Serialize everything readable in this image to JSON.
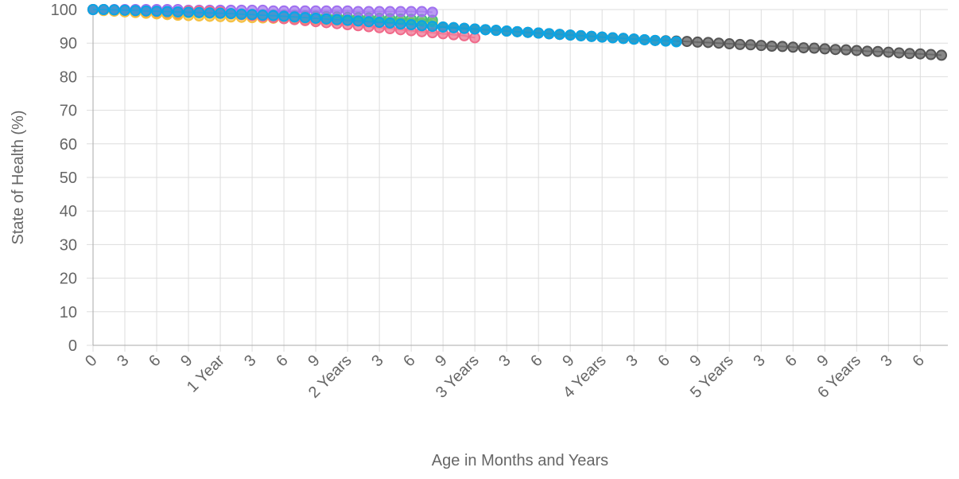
{
  "chart_data": {
    "type": "line",
    "x_label": "Age in Months and Years",
    "y_label": "State of Health (%)",
    "xlim": [
      0,
      80.6
    ],
    "ylim": [
      0,
      100
    ],
    "yticks": [
      0,
      10,
      20,
      30,
      40,
      50,
      60,
      70,
      80,
      90,
      100
    ],
    "xticks": [
      0,
      3,
      6,
      9,
      {
        "value": 12,
        "label": "1 Year"
      },
      {
        "value": 15,
        "label": "3"
      },
      {
        "value": 18,
        "label": "6"
      },
      {
        "value": 21,
        "label": "9"
      },
      {
        "value": 24,
        "label": "2 Years"
      },
      {
        "value": 27,
        "label": "3"
      },
      {
        "value": 30,
        "label": "6"
      },
      {
        "value": 33,
        "label": "9"
      },
      {
        "value": 36,
        "label": "3 Years"
      },
      {
        "value": 39,
        "label": "3"
      },
      {
        "value": 42,
        "label": "6"
      },
      {
        "value": 45,
        "label": "9"
      },
      {
        "value": 48,
        "label": "4 Years"
      },
      {
        "value": 51,
        "label": "3"
      },
      {
        "value": 54,
        "label": "6"
      },
      {
        "value": 57,
        "label": "9"
      },
      {
        "value": 60,
        "label": "5 Years"
      },
      {
        "value": 63,
        "label": "3"
      },
      {
        "value": 66,
        "label": "6"
      },
      {
        "value": 69,
        "label": "9"
      },
      {
        "value": 72,
        "label": "6 Years"
      },
      {
        "value": 75,
        "label": "3"
      },
      {
        "value": 78,
        "label": "6"
      }
    ],
    "grid": true,
    "series": [
      {
        "color": "#555555",
        "x": [
          0,
          1,
          2,
          3,
          4,
          5,
          6,
          7,
          8,
          9,
          10,
          11,
          12,
          13,
          14,
          15,
          16,
          17,
          18,
          19,
          20,
          21,
          22,
          23,
          24,
          25,
          26,
          27,
          28,
          29,
          30,
          31,
          32,
          33,
          34,
          35,
          36,
          37,
          38,
          39,
          40,
          41,
          42,
          43,
          44,
          45,
          46,
          47,
          48,
          49,
          50,
          51,
          52,
          53,
          54,
          55,
          56,
          57,
          58,
          59,
          60,
          61,
          62,
          63,
          64,
          65,
          66,
          67,
          68,
          69,
          70,
          71,
          72,
          73,
          74,
          75,
          76,
          77,
          78,
          79,
          80
        ],
        "values": [
          100,
          100,
          99.9,
          99.8,
          99.7,
          99.6,
          99.5,
          99.4,
          99.3,
          99.2,
          99.1,
          99,
          98.9,
          98.8,
          98.6,
          98.5,
          98.3,
          98.2,
          98,
          97.8,
          97.6,
          97.4,
          97.2,
          97,
          96.8,
          96.6,
          96.4,
          96.2,
          96,
          95.7,
          95.5,
          95.2,
          95,
          94.8,
          94.6,
          94.4,
          94.2,
          94,
          93.8,
          93.6,
          93.4,
          93.2,
          93,
          92.8,
          92.6,
          92.4,
          92.2,
          92,
          91.8,
          91.6,
          91.4,
          91.2,
          91,
          90.8,
          90.7,
          90.6,
          90.5,
          90.3,
          90.2,
          90,
          89.8,
          89.6,
          89.5,
          89.3,
          89.1,
          89,
          88.8,
          88.6,
          88.5,
          88.3,
          88.1,
          88,
          87.8,
          87.6,
          87.5,
          87.3,
          87.1,
          86.9,
          86.8,
          86.6,
          86.4
        ]
      },
      {
        "color": "#e8202a",
        "x": [
          0,
          1,
          2,
          3,
          4,
          5,
          6,
          7,
          8
        ],
        "values": [
          100,
          99.8,
          99.6,
          99.4,
          99.2,
          99,
          98.8,
          98.6,
          98.5
        ]
      },
      {
        "color": "#f5c042",
        "x": [
          0,
          1,
          2,
          3,
          4,
          5,
          6,
          7,
          8,
          9,
          10,
          11,
          12,
          13,
          14,
          15,
          16,
          17,
          18,
          19,
          20,
          21,
          22,
          23,
          24,
          25,
          26,
          27,
          28,
          29,
          30,
          31,
          32
        ],
        "values": [
          100,
          99.7,
          99.5,
          99.3,
          99.1,
          98.9,
          98.7,
          98.5,
          98.3,
          98.2,
          98.1,
          98,
          97.9,
          97.8,
          97.7,
          97.6,
          97.5,
          97.4,
          97.3,
          97.2,
          97.1,
          97,
          96.9,
          96.8,
          96.7,
          96.6,
          96.5,
          96.4,
          96.3,
          96.2,
          96.1,
          96,
          96
        ]
      },
      {
        "color": "#4bc07a",
        "x": [
          0,
          1,
          2,
          3,
          4,
          5,
          6,
          7,
          8,
          9,
          10,
          11,
          12,
          13,
          14,
          15,
          16,
          17,
          18,
          19,
          20,
          21,
          22,
          23,
          24,
          25,
          26,
          27,
          28,
          29,
          30,
          31,
          32
        ],
        "values": [
          100,
          100,
          99.9,
          99.8,
          99.7,
          99.6,
          99.5,
          99.4,
          99.3,
          99.2,
          99.1,
          99,
          98.9,
          98.8,
          98.7,
          98.6,
          98.5,
          98.4,
          98.3,
          98.2,
          98.1,
          98,
          97.9,
          97.8,
          97.7,
          97.6,
          97.5,
          97.4,
          97.3,
          97.2,
          97.1,
          97,
          96.8
        ]
      },
      {
        "color": "#a070f0",
        "x": [
          0,
          1,
          2,
          3,
          4,
          5,
          6,
          7,
          8,
          9,
          10,
          11,
          12,
          13,
          14,
          15,
          16,
          17,
          18,
          19,
          20,
          21,
          22,
          23,
          24,
          25,
          26,
          27,
          28,
          29,
          30,
          31,
          32
        ],
        "values": [
          100,
          100,
          100,
          100,
          100,
          100,
          100,
          100,
          100,
          99.8,
          99.8,
          99.8,
          99.8,
          99.8,
          99.8,
          99.8,
          99.8,
          99.6,
          99.6,
          99.6,
          99.6,
          99.6,
          99.6,
          99.6,
          99.6,
          99.4,
          99.4,
          99.4,
          99.4,
          99.4,
          99.4,
          99.4,
          99.2
        ]
      },
      {
        "color": "#f06a8a",
        "x": [
          0,
          1,
          2,
          3,
          4,
          5,
          6,
          7,
          8,
          9,
          10,
          11,
          12,
          13,
          14,
          15,
          16,
          17,
          18,
          19,
          20,
          21,
          22,
          23,
          24,
          25,
          26,
          27,
          28,
          29,
          30,
          31,
          32,
          33,
          34,
          35,
          36
        ],
        "values": [
          100,
          100,
          99.9,
          99.8,
          99.7,
          99.6,
          99.5,
          99.4,
          99.3,
          99.6,
          99.6,
          99.5,
          99.3,
          98.8,
          98.5,
          98.2,
          97.9,
          97.6,
          97.3,
          97,
          96.7,
          96.4,
          96.1,
          95.8,
          95.5,
          95.2,
          94.9,
          94.6,
          94.3,
          94,
          93.7,
          93.4,
          93.1,
          92.8,
          92.5,
          92.2,
          91.6
        ]
      },
      {
        "color": "#0aa5e6",
        "x": [
          0,
          1,
          2,
          3,
          4,
          5,
          6,
          7,
          8,
          9,
          10,
          11,
          12,
          13,
          14,
          15,
          16,
          17,
          18,
          19,
          20,
          21,
          22,
          23,
          24,
          25,
          26,
          27,
          28,
          29,
          30,
          31,
          32,
          33,
          34,
          35,
          36,
          37,
          38,
          39,
          40,
          41,
          42,
          43,
          44,
          45,
          46,
          47,
          48,
          49,
          50,
          51,
          52,
          53,
          54,
          55
        ],
        "values": [
          100,
          100,
          99.9,
          99.8,
          99.7,
          99.6,
          99.5,
          99.4,
          99.3,
          99.2,
          99.1,
          99,
          98.9,
          98.8,
          98.6,
          98.5,
          98.3,
          98.2,
          98,
          97.8,
          97.6,
          97.4,
          97.2,
          97,
          96.8,
          96.6,
          96.4,
          96.2,
          96,
          95.7,
          95.5,
          95.2,
          95,
          94.8,
          94.6,
          94.4,
          94.2,
          94,
          93.8,
          93.6,
          93.4,
          93.2,
          93,
          92.8,
          92.6,
          92.4,
          92.2,
          92,
          91.8,
          91.6,
          91.4,
          91.2,
          91,
          90.8,
          90.6,
          90.4
        ]
      }
    ]
  }
}
